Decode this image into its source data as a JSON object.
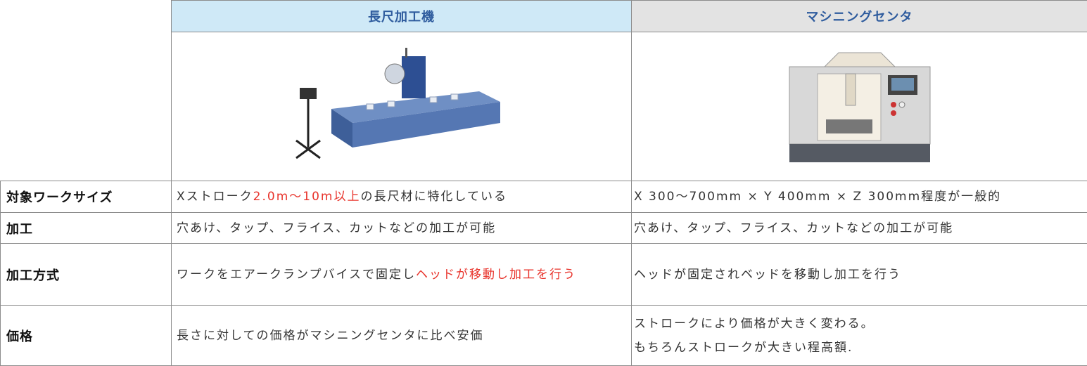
{
  "table": {
    "headers": [
      "長尺加工機",
      "マシニングセンタ"
    ],
    "rows": [
      {
        "label": "対象ワークサイズ",
        "cells": [
          [
            [
              {
                "text": "Xストローク"
              },
              {
                "text": "2.0m〜10m以上",
                "color": "#e8332b"
              },
              {
                "text": "の長尺材に特化している"
              }
            ]
          ],
          [
            [
              {
                "text": "X 300〜700mm × Y 400mm × Z 300mm程度が一般的"
              }
            ]
          ]
        ]
      },
      {
        "label": "加工",
        "cells": [
          [
            [
              {
                "text": "穴あけ、タップ、フライス、カットなどの加工が可能"
              }
            ]
          ],
          [
            [
              {
                "text": "穴あけ、タップ、フライス、カットなどの加工が可能"
              }
            ]
          ]
        ]
      },
      {
        "label": "加工方式",
        "cells": [
          [
            [
              {
                "text": "ワークをエアークランプバイスで固定し"
              },
              {
                "text": "ヘッドが移動し加工を行う",
                "color": "#e8332b"
              }
            ]
          ],
          [
            [
              {
                "text": "ヘッドが固定されベッドを移動し加工を行う"
              }
            ]
          ]
        ]
      },
      {
        "label": "価格",
        "cells": [
          [
            [
              {
                "text": "長さに対しての価格がマシニングセンタに比べ安価"
              }
            ]
          ],
          [
            [
              {
                "text": "ストロークにより価格が大きく変わる。"
              }
            ],
            [
              {
                "text": "もちろんストロークが大きい程高額."
              }
            ]
          ]
        ]
      }
    ]
  }
}
